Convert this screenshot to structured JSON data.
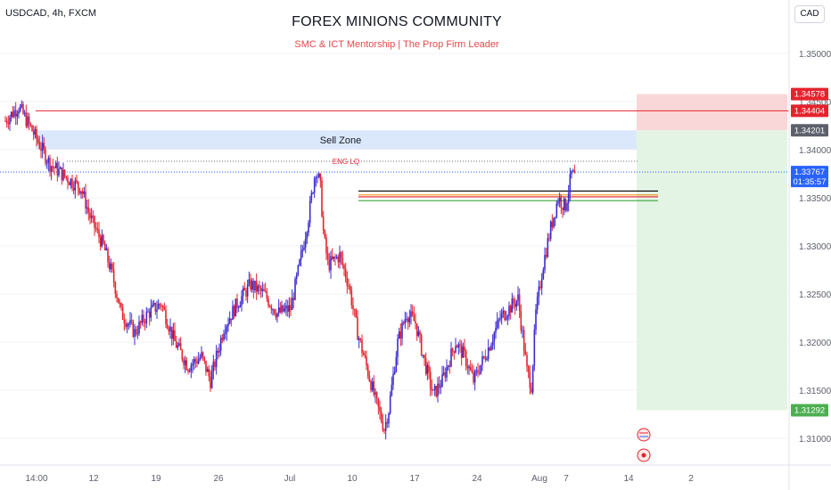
{
  "header": {
    "symbol": "USDCAD, 4h, FXCM",
    "title": "FOREX MINIONS COMMUNITY",
    "subtitle": "SMC & ICT Mentorship | The Prop Firm Leader",
    "currency": "CAD"
  },
  "chart_data": {
    "type": "candlestick",
    "instrument": "USDCAD",
    "timeframe": "4h",
    "ylim": [
      1.3085,
      1.3545
    ],
    "y_ticks": [
      {
        "value": 1.35,
        "label": "1.35000"
      },
      {
        "value": 1.345,
        "label": "1.34500"
      },
      {
        "value": 1.34,
        "label": "1.34000"
      },
      {
        "value": 1.335,
        "label": "1.33500"
      },
      {
        "value": 1.33,
        "label": "1.33000"
      },
      {
        "value": 1.325,
        "label": "1.32500"
      },
      {
        "value": 1.32,
        "label": "1.32000"
      },
      {
        "value": 1.315,
        "label": "1.31500"
      },
      {
        "value": 1.31,
        "label": "1.31000"
      }
    ],
    "x_ticks": [
      {
        "day": 0,
        "label": "14:00"
      },
      {
        "day": 6.4,
        "label": "12"
      },
      {
        "day": 13.4,
        "label": "19"
      },
      {
        "day": 20.4,
        "label": "26"
      },
      {
        "day": 28.4,
        "label": "Jul"
      },
      {
        "day": 35.4,
        "label": "10"
      },
      {
        "day": 42.4,
        "label": "17"
      },
      {
        "day": 49.4,
        "label": "24"
      },
      {
        "day": 56.4,
        "label": "Aug"
      },
      {
        "day": 59.4,
        "label": "7"
      },
      {
        "day": 66.4,
        "label": "14"
      },
      {
        "day": 73.4,
        "label": "2"
      }
    ],
    "path": [
      [
        0,
        1.343
      ],
      [
        1.5,
        1.3445
      ],
      [
        3,
        1.342
      ],
      [
        5,
        1.3385
      ],
      [
        7,
        1.337
      ],
      [
        8.5,
        1.336
      ],
      [
        9.5,
        1.333
      ],
      [
        11,
        1.33
      ],
      [
        12,
        1.327
      ],
      [
        13,
        1.323
      ],
      [
        14.5,
        1.321
      ],
      [
        16,
        1.323
      ],
      [
        17.5,
        1.324
      ],
      [
        19,
        1.32
      ],
      [
        20.5,
        1.3175
      ],
      [
        22,
        1.3185
      ],
      [
        23,
        1.316
      ],
      [
        24.5,
        1.3215
      ],
      [
        26,
        1.324
      ],
      [
        27.5,
        1.326
      ],
      [
        29,
        1.325
      ],
      [
        30.5,
        1.323
      ],
      [
        32,
        1.3235
      ],
      [
        33.2,
        1.329
      ],
      [
        34,
        1.333
      ],
      [
        34.8,
        1.338
      ],
      [
        35.3,
        1.3365
      ],
      [
        35.7,
        1.331
      ],
      [
        36.2,
        1.328
      ],
      [
        37.5,
        1.329
      ],
      [
        38.5,
        1.326
      ],
      [
        39.5,
        1.321
      ],
      [
        40.5,
        1.3175
      ],
      [
        41.5,
        1.314
      ],
      [
        42.5,
        1.311
      ],
      [
        43,
        1.313
      ],
      [
        44,
        1.32
      ],
      [
        45,
        1.323
      ],
      [
        46,
        1.322
      ],
      [
        47,
        1.318
      ],
      [
        48,
        1.3145
      ],
      [
        49,
        1.316
      ],
      [
        50.5,
        1.32
      ],
      [
        51.5,
        1.3185
      ],
      [
        52.5,
        1.316
      ],
      [
        54,
        1.319
      ],
      [
        55.5,
        1.3225
      ],
      [
        56.5,
        1.3235
      ],
      [
        57.5,
        1.3245
      ],
      [
        58.5,
        1.317
      ],
      [
        59,
        1.3155
      ],
      [
        59.5,
        1.323
      ],
      [
        60.3,
        1.328
      ],
      [
        61.2,
        1.332
      ],
      [
        62,
        1.335
      ],
      [
        62.8,
        1.334
      ],
      [
        63.5,
        1.3375
      ],
      [
        64,
        1.337
      ]
    ],
    "levels": [
      {
        "name": "stop-line",
        "value": 1.34404,
        "color": "#e5232d"
      },
      {
        "name": "sell-zone",
        "from": 1.34201,
        "to": 1.34005,
        "label": "Sell Zone",
        "color": "#dbe8fb"
      },
      {
        "name": "eng-lq",
        "value": 1.3388,
        "label": "ENG LQ",
        "color": "#e5232d"
      },
      {
        "name": "current-price-line",
        "value": 1.33767,
        "color": "#2962ff"
      },
      {
        "name": "entry-black",
        "value": 1.3357,
        "color": "#000000"
      },
      {
        "name": "entry-orange",
        "value": 1.3353,
        "color": "#f0a030"
      },
      {
        "name": "entry-red",
        "value": 1.3351,
        "color": "#e5232d"
      },
      {
        "name": "entry-green",
        "value": 1.3347,
        "color": "#4caf50"
      }
    ],
    "position": {
      "type": "short",
      "entry": 1.34201,
      "stop": 1.34578,
      "target": 1.31292,
      "risk_color": "#f9d7d9",
      "reward_color": "#e3f4e4"
    },
    "price_labels": [
      {
        "name": "stop-price-tag",
        "value": 1.34578,
        "text": "1.34578",
        "bg": "#e5232d",
        "fg": "#ffffff"
      },
      {
        "name": "line-price-tag",
        "value": 1.34404,
        "text": "1.34404",
        "bg": "#e5232d",
        "fg": "#ffffff"
      },
      {
        "name": "entry-price-tag",
        "value": 1.34201,
        "text": "1.34201",
        "bg": "#5d606b",
        "fg": "#ffffff"
      },
      {
        "name": "current-price-tag",
        "value": 1.33767,
        "text": "1.33767",
        "sub": "01:35:57",
        "bg": "#2962ff",
        "fg": "#ffffff"
      },
      {
        "name": "target-price-tag",
        "value": 1.31292,
        "text": "1.31292",
        "bg": "#4caf50",
        "fg": "#ffffff"
      }
    ],
    "colors": {
      "up": "#3a2bd0",
      "down": "#e5232d",
      "grid": "#f0f3fa",
      "axis_text": "#5d606b"
    }
  }
}
